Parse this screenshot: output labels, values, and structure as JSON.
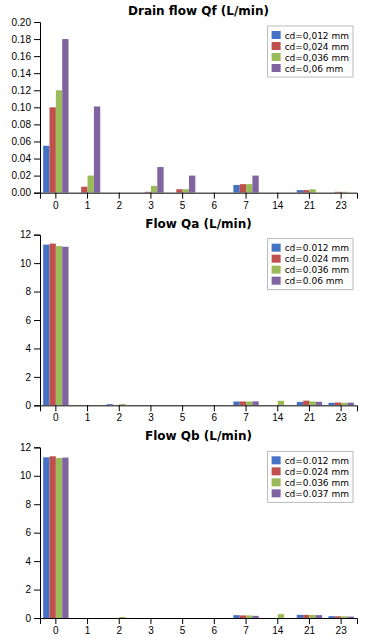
{
  "chart_data": [
    {
      "type": "bar",
      "title": "Drain flow Qf (L/min)",
      "categories": [
        "0",
        "1",
        "2",
        "3",
        "5",
        "6",
        "7",
        "14",
        "21",
        "23"
      ],
      "ylim": [
        0,
        0.2
      ],
      "yticks": [
        {
          "value": 0,
          "label": "0.00"
        },
        0.02,
        0.04,
        0.06,
        0.08,
        {
          "value": 0.1,
          "label": "0.10"
        },
        0.12,
        0.14,
        0.16,
        0.18,
        {
          "value": 0.2,
          "label": "0.20"
        }
      ],
      "grid": false,
      "legend": "upper right",
      "series": [
        {
          "name": "cd=0,012 mm",
          "color": "#4472C4",
          "values": [
            0.055,
            0.0,
            0.0,
            0.0,
            0.0,
            0.0,
            0.009,
            0.0,
            0.003,
            0.0
          ]
        },
        {
          "name": "cd=0,024 mm",
          "color": "#C0504D",
          "values": [
            0.1,
            0.007,
            0.0,
            0.001,
            0.004,
            0.0,
            0.01,
            0.0,
            0.003,
            0.001
          ]
        },
        {
          "name": "cd=0,036 mm",
          "color": "#9BBB59",
          "values": [
            0.12,
            0.02,
            0.0,
            0.008,
            0.004,
            0.0,
            0.01,
            0.0,
            0.004,
            0.001
          ]
        },
        {
          "name": "cd=0,06 mm",
          "color": "#8064A2",
          "values": [
            0.18,
            0.101,
            0.0,
            0.03,
            0.02,
            0.0,
            0.02,
            0.0,
            0.0,
            0.0
          ]
        }
      ]
    },
    {
      "type": "bar",
      "title": "Flow Qa (L/min)",
      "categories": [
        "0",
        "1",
        "2",
        "3",
        "5",
        "6",
        "7",
        "14",
        "21",
        "23"
      ],
      "ylim": [
        0,
        12
      ],
      "yticks": [
        0,
        2,
        4,
        6,
        8,
        10,
        12
      ],
      "grid": false,
      "legend": "upper right",
      "series": [
        {
          "name": "cd=0.012 mm",
          "color": "#4472C4",
          "values": [
            11.3,
            0.0,
            0.08,
            0.0,
            0.0,
            0.0,
            0.27,
            0.0,
            0.24,
            0.18
          ]
        },
        {
          "name": "cd=0.024 mm",
          "color": "#C0504D",
          "values": [
            11.37,
            0.0,
            0.0,
            0.0,
            0.0,
            0.0,
            0.27,
            0.0,
            0.33,
            0.2
          ]
        },
        {
          "name": "cd=0.036 mm",
          "color": "#9BBB59",
          "values": [
            11.2,
            0.0,
            0.09,
            0.0,
            0.0,
            0.0,
            0.27,
            0.32,
            0.27,
            0.18
          ]
        },
        {
          "name": "cd=0.06 mm",
          "color": "#8064A2",
          "values": [
            11.15,
            0.0,
            0.0,
            0.0,
            0.0,
            0.0,
            0.28,
            0.0,
            0.25,
            0.19
          ]
        }
      ]
    },
    {
      "type": "bar",
      "title": "Flow Qb (L/min)",
      "categories": [
        "0",
        "1",
        "2",
        "3",
        "5",
        "6",
        "7",
        "14",
        "21",
        "23"
      ],
      "ylim": [
        0,
        12
      ],
      "yticks": [
        0,
        2,
        4,
        6,
        8,
        10,
        12
      ],
      "grid": false,
      "legend": "upper right",
      "series": [
        {
          "name": "cd=0.012 mm",
          "color": "#4472C4",
          "values": [
            11.3,
            0.0,
            0.0,
            0.0,
            0.0,
            0.0,
            0.2,
            0.0,
            0.22,
            0.13
          ]
        },
        {
          "name": "cd=0.024 mm",
          "color": "#C0504D",
          "values": [
            11.37,
            0.0,
            0.0,
            0.0,
            0.0,
            0.0,
            0.18,
            0.0,
            0.22,
            0.12
          ]
        },
        {
          "name": "cd=0.036 mm",
          "color": "#9BBB59",
          "values": [
            11.25,
            0.0,
            0.07,
            0.0,
            0.0,
            0.0,
            0.18,
            0.27,
            0.22,
            0.12
          ]
        },
        {
          "name": "cd=0.037 mm",
          "color": "#8064A2",
          "values": [
            11.28,
            0.0,
            0.0,
            0.0,
            0.0,
            0.0,
            0.15,
            0.0,
            0.2,
            0.1
          ]
        }
      ]
    }
  ]
}
